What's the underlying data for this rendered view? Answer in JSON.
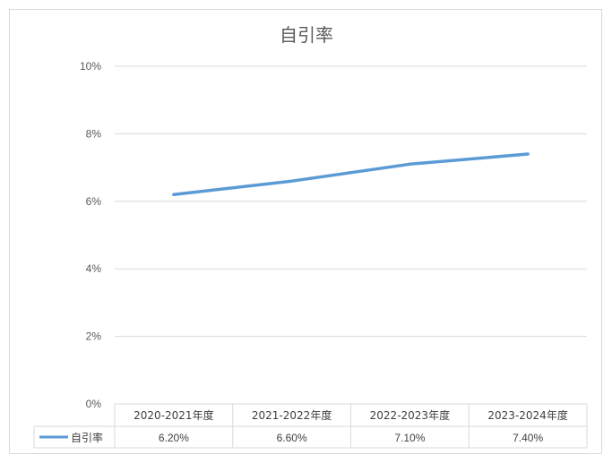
{
  "chart_data": {
    "type": "line",
    "title": "自引率",
    "categories": [
      "2020-2021年度",
      "2021-2022年度",
      "2022-2023年度",
      "2023-2024年度"
    ],
    "series": [
      {
        "name": "自引率",
        "values": [
          6.2,
          6.6,
          7.1,
          7.4
        ],
        "labels": [
          "6.20%",
          "6.60%",
          "7.10%",
          "7.40%"
        ]
      }
    ],
    "y_ticks": [
      "0%",
      "2%",
      "4%",
      "6%",
      "8%",
      "10%"
    ],
    "ylim": [
      0,
      10
    ],
    "grid": true,
    "legend": "data-table-left",
    "colors": {
      "series": "#5b9bd5",
      "grid": "#d9d9d9",
      "text": "#595959"
    }
  }
}
